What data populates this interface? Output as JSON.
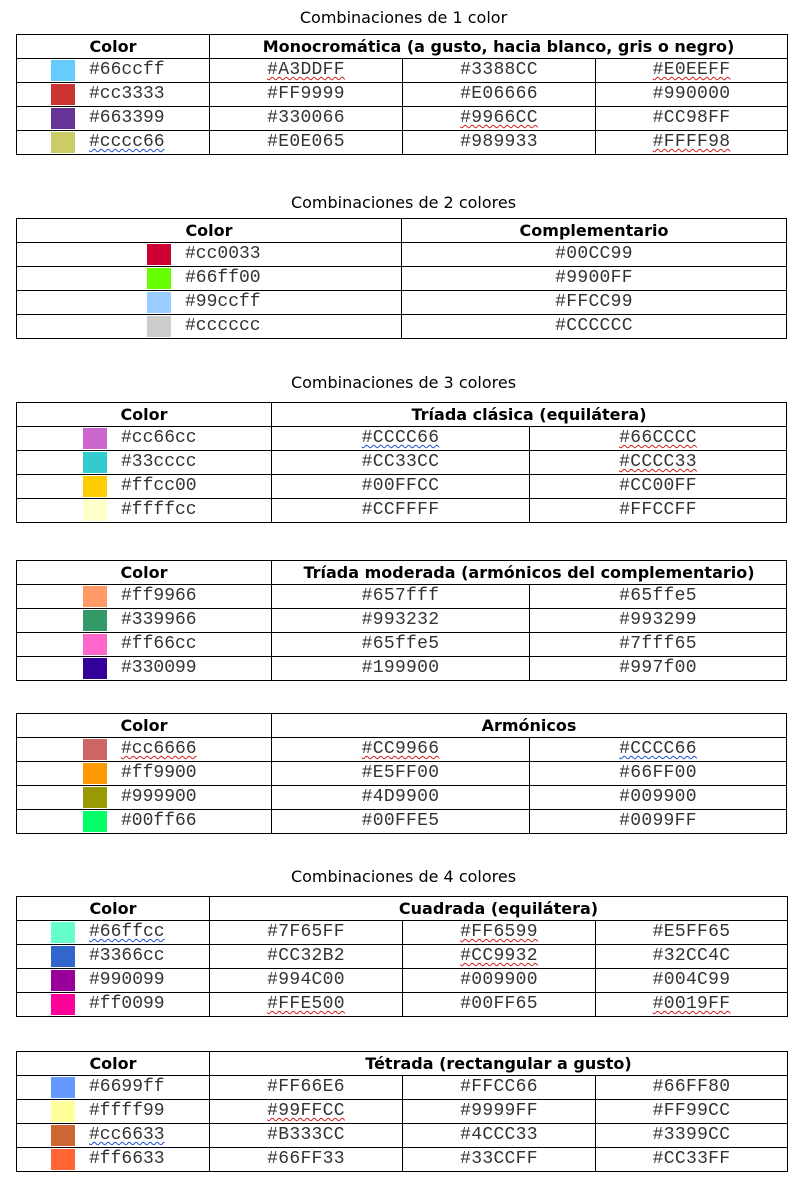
{
  "sections": [
    {
      "title": "Combinaciones de 1 color",
      "header": [
        "Color",
        "Monocromática (a gusto, hacia blanco, gris o negro)"
      ],
      "rows": [
        {
          "swatch": "#66ccff",
          "color": "#66ccff",
          "values": [
            "#A3DDFF",
            "#3388CC",
            "#E0EEFF"
          ],
          "marks": [
            "red",
            "",
            "red"
          ]
        },
        {
          "swatch": "#cc3333",
          "color": "#cc3333",
          "values": [
            "#FF9999",
            "#E06666",
            "#990000"
          ],
          "marks": [
            "",
            "",
            ""
          ]
        },
        {
          "swatch": "#663399",
          "color": "#663399",
          "values": [
            "#330066",
            "#9966CC",
            "#CC98FF"
          ],
          "marks": [
            "",
            "red",
            ""
          ]
        },
        {
          "swatch": "#cccc66",
          "color": "#cccc66",
          "values": [
            "#E0E065",
            "#989933",
            "#FFFF98"
          ],
          "marks": [
            "",
            "",
            "red"
          ],
          "color_mark": "blue"
        }
      ]
    },
    {
      "title": "Combinaciones de 2 colores",
      "header": [
        "Color",
        "Complementario"
      ],
      "rows": [
        {
          "swatch": "#cc0033",
          "color": "#cc0033",
          "values": [
            "#00CC99"
          ],
          "marks": [
            ""
          ]
        },
        {
          "swatch": "#66ff00",
          "color": "#66ff00",
          "values": [
            "#9900FF"
          ],
          "marks": [
            ""
          ]
        },
        {
          "swatch": "#99ccff",
          "color": "#99ccff",
          "values": [
            "#FFCC99"
          ],
          "marks": [
            ""
          ]
        },
        {
          "swatch": "#cccccc",
          "color": "#cccccc",
          "values": [
            "#CCCCCC"
          ],
          "marks": [
            ""
          ]
        }
      ]
    },
    {
      "title": "Combinaciones de 3 colores",
      "header": [
        "Color",
        "Tríada clásica (equilátera)"
      ],
      "rows": [
        {
          "swatch": "#cc66cc",
          "color": "#cc66cc",
          "values": [
            "#CCCC66",
            "#66CCCC"
          ],
          "marks": [
            "blue",
            "red"
          ]
        },
        {
          "swatch": "#33cccc",
          "color": "#33cccc",
          "values": [
            "#CC33CC",
            "#CCCC33"
          ],
          "marks": [
            "",
            "red"
          ]
        },
        {
          "swatch": "#ffcc00",
          "color": "#ffcc00",
          "values": [
            "#00FFCC",
            "#CC00FF"
          ],
          "marks": [
            "",
            ""
          ]
        },
        {
          "swatch": "#ffffcc",
          "color": "#ffffcc",
          "values": [
            "#CCFFFF",
            "#FFCCFF"
          ],
          "marks": [
            "",
            ""
          ]
        }
      ]
    },
    {
      "title": "",
      "header": [
        "Color",
        "Tríada moderada (armónicos del complementario)"
      ],
      "rows": [
        {
          "swatch": "#ff9966",
          "color": "#ff9966",
          "values": [
            "#657fff",
            "#65ffe5"
          ],
          "marks": [
            "",
            ""
          ]
        },
        {
          "swatch": "#339966",
          "color": "#339966",
          "values": [
            "#993232",
            "#993299"
          ],
          "marks": [
            "",
            ""
          ]
        },
        {
          "swatch": "#ff66cc",
          "color": "#ff66cc",
          "values": [
            "#65ffe5",
            "#7fff65"
          ],
          "marks": [
            "",
            ""
          ]
        },
        {
          "swatch": "#330099",
          "color": "#330099",
          "values": [
            "#199900",
            "#997f00"
          ],
          "marks": [
            "",
            ""
          ]
        }
      ]
    },
    {
      "title": "",
      "header": [
        "Color",
        "Armónicos"
      ],
      "rows": [
        {
          "swatch": "#cc6666",
          "color": "#cc6666",
          "values": [
            "#CC9966",
            "#CCCC66"
          ],
          "marks": [
            "red",
            "blue"
          ],
          "color_mark": "red"
        },
        {
          "swatch": "#ff9900",
          "color": "#ff9900",
          "values": [
            "#E5FF00",
            "#66FF00"
          ],
          "marks": [
            "",
            ""
          ]
        },
        {
          "swatch": "#999900",
          "color": "#999900",
          "values": [
            "#4D9900",
            "#009900"
          ],
          "marks": [
            "",
            ""
          ]
        },
        {
          "swatch": "#00ff66",
          "color": "#00ff66",
          "values": [
            "#00FFE5",
            "#0099FF"
          ],
          "marks": [
            "",
            ""
          ]
        }
      ]
    },
    {
      "title": "Combinaciones de 4 colores",
      "header": [
        "Color",
        "Cuadrada (equilátera)"
      ],
      "rows": [
        {
          "swatch": "#66ffcc",
          "color": "#66ffcc",
          "values": [
            "#7F65FF",
            "#FF6599",
            "#E5FF65"
          ],
          "marks": [
            "",
            "red",
            ""
          ],
          "color_mark": "blue"
        },
        {
          "swatch": "#3366cc",
          "color": "#3366cc",
          "values": [
            "#CC32B2",
            "#CC9932",
            "#32CC4C"
          ],
          "marks": [
            "",
            "red",
            ""
          ]
        },
        {
          "swatch": "#990099",
          "color": "#990099",
          "values": [
            "#994C00",
            "#009900",
            "#004C99"
          ],
          "marks": [
            "",
            "",
            ""
          ]
        },
        {
          "swatch": "#ff0099",
          "color": "#ff0099",
          "values": [
            "#FFE500",
            "#00FF65",
            "#0019FF"
          ],
          "marks": [
            "red",
            "",
            "red"
          ]
        }
      ]
    },
    {
      "title": "",
      "header": [
        "Color",
        "Tétrada (rectangular a gusto)"
      ],
      "rows": [
        {
          "swatch": "#6699ff",
          "color": "#6699ff",
          "values": [
            "#FF66E6",
            "#FFCC66",
            "#66FF80"
          ],
          "marks": [
            "",
            "",
            ""
          ]
        },
        {
          "swatch": "#ffff99",
          "color": "#ffff99",
          "values": [
            "#99FFCC",
            "#9999FF",
            "#FF99CC"
          ],
          "marks": [
            "red",
            "",
            ""
          ]
        },
        {
          "swatch": "#cc6633",
          "color": "#cc6633",
          "values": [
            "#B333CC",
            "#4CCC33",
            "#3399CC"
          ],
          "marks": [
            "",
            "",
            ""
          ],
          "color_mark": "blue"
        },
        {
          "swatch": "#ff6633",
          "color": "#ff6633",
          "values": [
            "#66FF33",
            "#33CCFF",
            "#CC33FF"
          ],
          "marks": [
            "",
            "",
            ""
          ]
        }
      ]
    }
  ]
}
